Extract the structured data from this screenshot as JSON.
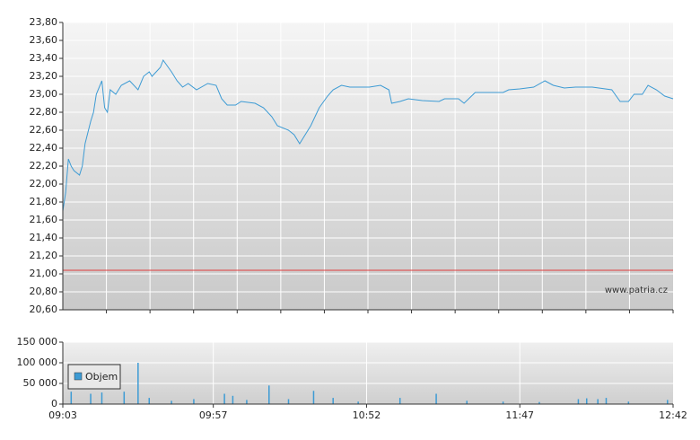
{
  "chart_data": [
    {
      "type": "line",
      "xlim": [
        "09:03",
        "12:42"
      ],
      "ylim": [
        20.6,
        23.8
      ],
      "yticks": [
        {
          "value": 20.6,
          "label": "20,60"
        },
        {
          "value": 20.8,
          "label": "20,80"
        },
        {
          "value": 21.0,
          "label": "21,00"
        },
        {
          "value": 21.2,
          "label": "21,20"
        },
        {
          "value": 21.4,
          "label": "21,40"
        },
        {
          "value": 21.6,
          "label": "21,60"
        },
        {
          "value": 21.8,
          "label": "21,80"
        },
        {
          "value": 22.0,
          "label": "22,00"
        },
        {
          "value": 22.2,
          "label": "22,20"
        },
        {
          "value": 22.4,
          "label": "22,40"
        },
        {
          "value": 22.6,
          "label": "22,60"
        },
        {
          "value": 22.8,
          "label": "22,80"
        },
        {
          "value": 23.0,
          "label": "23,00"
        },
        {
          "value": 23.2,
          "label": "23,20"
        },
        {
          "value": 23.4,
          "label": "23,40"
        },
        {
          "value": 23.6,
          "label": "23,60"
        },
        {
          "value": 23.8,
          "label": "23,80"
        }
      ],
      "grid": true,
      "reference_line": {
        "value": 21.04,
        "color": "#e03c3c"
      },
      "watermark": "www.patria.cz",
      "x": [
        "09:03",
        "09:04",
        "09:05",
        "09:06",
        "09:07",
        "09:09",
        "09:10",
        "09:11",
        "09:13",
        "09:14",
        "09:15",
        "09:17",
        "09:18",
        "09:19",
        "09:20",
        "09:22",
        "09:24",
        "09:27",
        "09:30",
        "09:32",
        "09:34",
        "09:35",
        "09:38",
        "09:39",
        "09:42",
        "09:44",
        "09:46",
        "09:48",
        "09:51",
        "09:55",
        "09:58",
        "10:00",
        "10:02",
        "10:05",
        "10:07",
        "10:12",
        "10:15",
        "10:18",
        "10:20",
        "10:24",
        "10:26",
        "10:28",
        "10:30",
        "10:32",
        "10:35",
        "10:38",
        "10:40",
        "10:43",
        "10:46",
        "10:53",
        "10:57",
        "11:00",
        "11:01",
        "11:04",
        "11:07",
        "11:12",
        "11:18",
        "11:20",
        "11:25",
        "11:27",
        "11:31",
        "11:36",
        "11:41",
        "11:43",
        "11:47",
        "11:52",
        "11:56",
        "11:59",
        "12:03",
        "12:07",
        "12:13",
        "12:20",
        "12:23",
        "12:26",
        "12:28",
        "12:31",
        "12:33",
        "12:36",
        "12:39",
        "12:42"
      ],
      "series": [
        {
          "color": "#3d9bd4",
          "values": [
            21.7,
            21.9,
            22.28,
            22.2,
            22.15,
            22.1,
            22.2,
            22.45,
            22.7,
            22.8,
            23.0,
            23.15,
            22.85,
            22.8,
            23.05,
            23.0,
            23.1,
            23.15,
            23.05,
            23.2,
            23.25,
            23.2,
            23.3,
            23.38,
            23.25,
            23.15,
            23.08,
            23.12,
            23.05,
            23.12,
            23.1,
            22.95,
            22.88,
            22.88,
            22.92,
            22.9,
            22.85,
            22.75,
            22.65,
            22.6,
            22.55,
            22.45,
            22.55,
            22.65,
            22.85,
            22.98,
            23.05,
            23.1,
            23.08,
            23.08,
            23.1,
            23.05,
            22.9,
            22.92,
            22.95,
            22.93,
            22.92,
            22.95,
            22.95,
            22.9,
            23.02,
            23.02,
            23.02,
            23.05,
            23.06,
            23.08,
            23.15,
            23.1,
            23.07,
            23.08,
            23.08,
            23.05,
            22.92,
            22.92,
            23.0,
            23.0,
            23.1,
            23.05,
            22.98,
            22.95
          ]
        }
      ]
    },
    {
      "type": "bar",
      "xlim": [
        "09:03",
        "12:42"
      ],
      "xticks": [
        "09:03",
        "09:57",
        "10:52",
        "11:47",
        "12:42"
      ],
      "ylim": [
        0,
        150000
      ],
      "yticks": [
        0,
        {
          "value": 50000,
          "label": "50 000"
        },
        {
          "value": 100000,
          "label": "100 000"
        },
        {
          "value": 150000,
          "label": "150 000"
        }
      ],
      "grid": true,
      "legend": "upper left",
      "x": [
        "09:06",
        "09:13",
        "09:17",
        "09:25",
        "09:30",
        "09:34",
        "09:42",
        "09:50",
        "10:01",
        "10:04",
        "10:09",
        "10:17",
        "10:24",
        "10:33",
        "10:40",
        "10:49",
        "11:04",
        "11:17",
        "11:28",
        "11:41",
        "11:54",
        "12:08",
        "12:11",
        "12:15",
        "12:18",
        "12:26",
        "12:40"
      ],
      "series": [
        {
          "name": "Objem",
          "color": "#3d9bd4",
          "values": [
            30000,
            25000,
            28000,
            30000,
            100000,
            15000,
            8000,
            12000,
            25000,
            20000,
            10000,
            45000,
            12000,
            32000,
            15000,
            6000,
            15000,
            25000,
            8000,
            6000,
            5000,
            12000,
            14000,
            12000,
            15000,
            6000,
            10000
          ]
        }
      ]
    }
  ]
}
